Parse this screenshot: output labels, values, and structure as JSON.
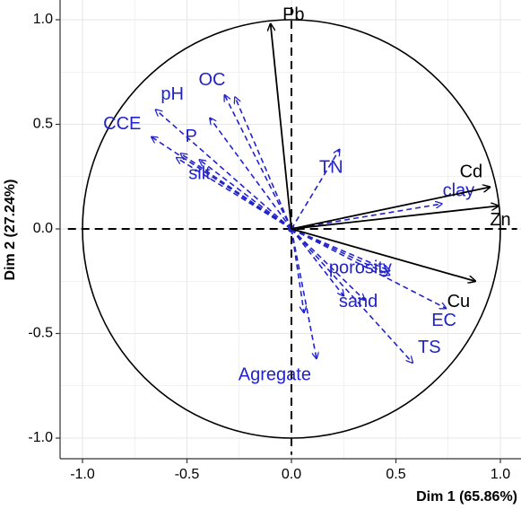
{
  "chart_data": {
    "type": "pca-correlation-circle",
    "xlabel": "Dim 1 (65.86%)",
    "ylabel": "Dim 2 (27.24%)",
    "xlim": [
      -1.1,
      1.1
    ],
    "ylim": [
      -1.1,
      1.1
    ],
    "x_ticks": [
      {
        "value": -1.0,
        "label": "-1.0"
      },
      {
        "value": -0.5,
        "label": "-0.5"
      },
      {
        "value": 0.0,
        "label": "0.0"
      },
      {
        "value": 0.5,
        "label": "0.5"
      },
      {
        "value": 1.0,
        "label": "1.0"
      }
    ],
    "y_ticks": [
      {
        "value": 1.0,
        "label": "1.0"
      },
      {
        "value": 0.5,
        "label": "0.5"
      },
      {
        "value": 0.0,
        "label": "0.0"
      },
      {
        "value": -0.5,
        "label": "-0.5"
      },
      {
        "value": -1.0,
        "label": "-1.0"
      }
    ],
    "grid": true,
    "unit_circle": true,
    "colors": {
      "active": "#000000",
      "supplementary": "#2222cc",
      "grid": "#e6e6e6"
    },
    "active_variables": [
      {
        "name": "Pb",
        "x": -0.1,
        "y": 0.98,
        "lx": 0.01,
        "ly": 1.02
      },
      {
        "name": "Cd",
        "x": 0.95,
        "y": 0.2,
        "lx": 0.86,
        "ly": 0.27
      },
      {
        "name": "Zn",
        "x": 0.99,
        "y": 0.11,
        "lx": 1.0,
        "ly": 0.04
      },
      {
        "name": "Cu",
        "x": 0.88,
        "y": -0.25,
        "lx": 0.8,
        "ly": -0.35
      }
    ],
    "supplementary_variables": [
      {
        "name": "CCE",
        "x": -0.67,
        "y": 0.44,
        "lx": -0.81,
        "ly": 0.5
      },
      {
        "name": "pH",
        "x": -0.65,
        "y": 0.57,
        "lx": -0.57,
        "ly": 0.64
      },
      {
        "name": "P",
        "x": -0.53,
        "y": 0.36,
        "lx": -0.48,
        "ly": 0.44
      },
      {
        "name": "silt",
        "x": -0.55,
        "y": 0.34,
        "lx": -0.44,
        "ly": 0.26
      },
      {
        "name": "OC",
        "x": -0.32,
        "y": 0.64,
        "lx": -0.38,
        "ly": 0.71
      },
      {
        "name": "",
        "x": -0.39,
        "y": 0.53
      },
      {
        "name": "",
        "x": -0.27,
        "y": 0.63
      },
      {
        "name": "",
        "x": -0.44,
        "y": 0.33
      },
      {
        "name": "TN",
        "x": 0.23,
        "y": 0.38,
        "lx": 0.19,
        "ly": 0.29
      },
      {
        "name": "clay",
        "x": 0.72,
        "y": 0.12,
        "lx": 0.8,
        "ly": 0.18
      },
      {
        "name": "porosity",
        "x": 0.47,
        "y": -0.2,
        "lx": 0.33,
        "ly": -0.19
      },
      {
        "name": "",
        "x": 0.47,
        "y": -0.22
      },
      {
        "name": "sand",
        "x": 0.35,
        "y": -0.34,
        "lx": 0.32,
        "ly": -0.35
      },
      {
        "name": "EC",
        "x": 0.74,
        "y": -0.38,
        "lx": 0.73,
        "ly": -0.44
      },
      {
        "name": "TS",
        "x": 0.58,
        "y": -0.64,
        "lx": 0.66,
        "ly": -0.57
      },
      {
        "name": "Agregate",
        "x": 0.12,
        "y": -0.62,
        "lx": -0.08,
        "ly": -0.7
      },
      {
        "name": "",
        "x": 0.06,
        "y": -0.4
      },
      {
        "name": "",
        "x": 0.25,
        "y": -0.32
      }
    ]
  }
}
